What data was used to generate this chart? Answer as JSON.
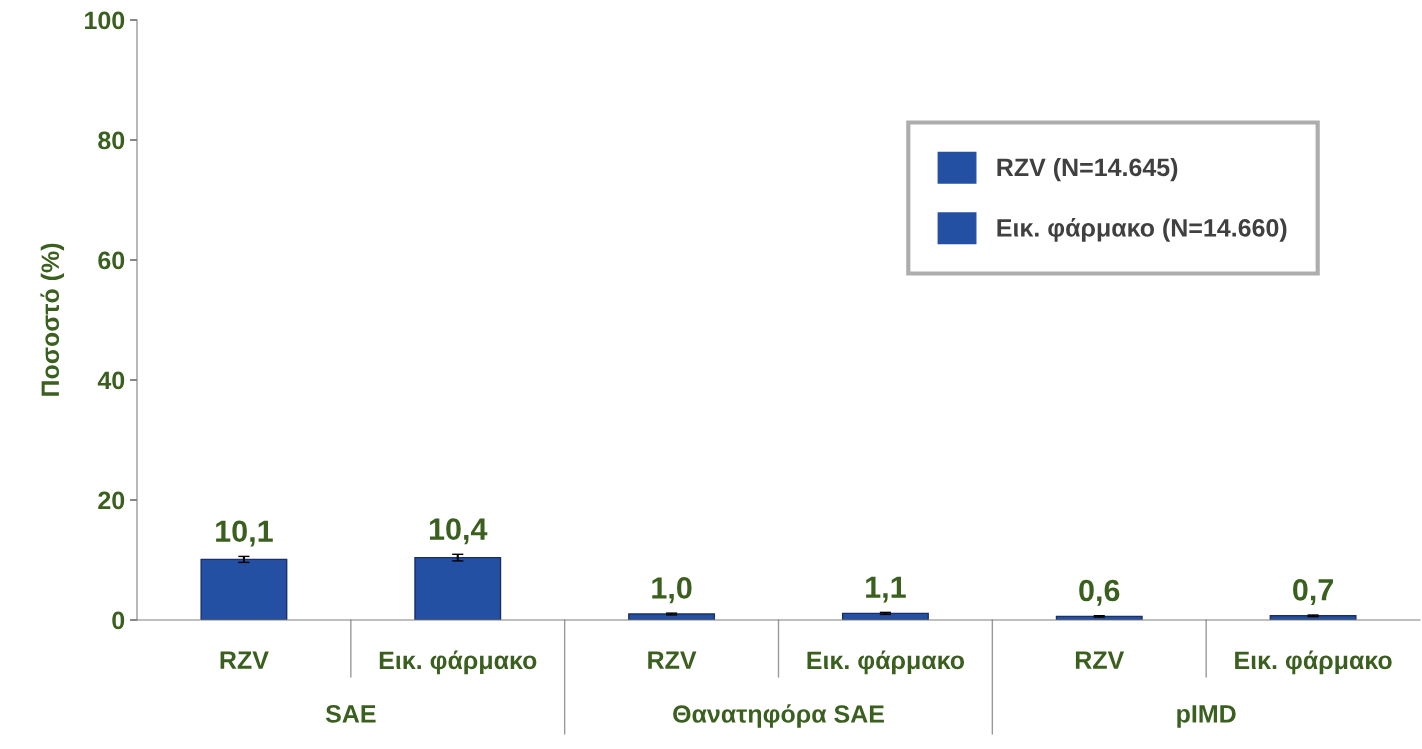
{
  "chart_data": {
    "type": "bar",
    "ylabel": "Ποσοστό (%)",
    "categories": [
      "RZV",
      "Εικ. φάρμακο",
      "RZV",
      "Εικ. φάρμακο",
      "RZV",
      "Εικ. φάρμακο"
    ],
    "series": [
      {
        "name": "RZV (N=14.645)",
        "color": "#2350a3",
        "values": [
          10.1,
          null,
          1.0,
          null,
          0.6,
          null
        ],
        "errors": [
          0.5,
          null,
          0.15,
          null,
          0.12,
          null
        ],
        "value_labels": [
          "10,1",
          null,
          "1,0",
          null,
          "0,6",
          null
        ]
      },
      {
        "name": "Εικ. φάρμακο (N=14.660)",
        "color": "#2350a3",
        "values": [
          null,
          10.4,
          null,
          1.1,
          null,
          0.7
        ],
        "errors": [
          null,
          0.55,
          null,
          0.17,
          null,
          0.13
        ],
        "value_labels": [
          null,
          "10,4",
          null,
          "1,1",
          null,
          "0,7"
        ]
      }
    ],
    "annotations": [
      "SAE",
      "Θανατηφόρα SAE",
      "pIMD"
    ],
    "ylim": [
      0,
      100
    ],
    "yticks": [
      0,
      20,
      40,
      60,
      80,
      100
    ],
    "grid": false,
    "legend": "top right"
  }
}
